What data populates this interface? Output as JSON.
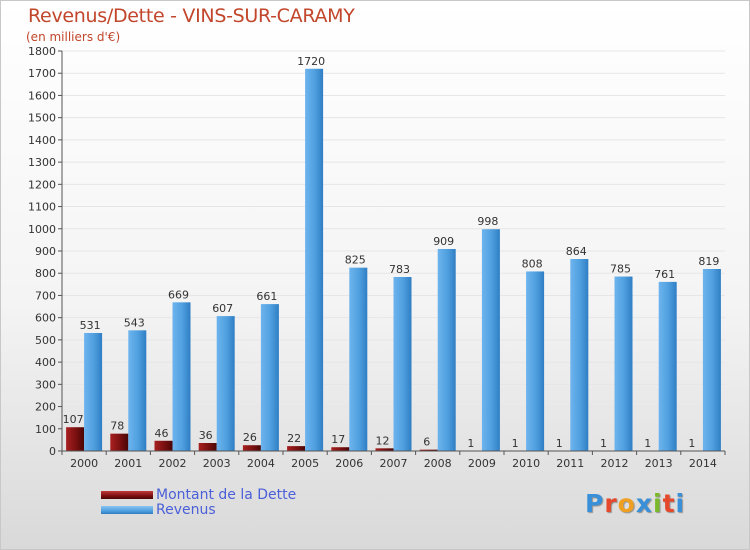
{
  "title": "Revenus/Dette - VINS-SUR-CARAMY",
  "subtitle": "(en milliers d'€)",
  "logo_text": "Proxiti",
  "logo_colors": [
    "#3a8fd9",
    "#e5482b",
    "#f0a020",
    "#3a8fd9",
    "#7ab929",
    "#e5482b",
    "#3a8fd9"
  ],
  "colors": {
    "dette": "#7a1010",
    "revenus": "#4f9fdf",
    "axis": "#555555",
    "grid": "#e6e6e6",
    "title": "#c2462b",
    "legend_text": "#4a5fd8"
  },
  "legend": [
    {
      "label": "Montant de la Dette",
      "color": "#7a1010"
    },
    {
      "label": "Revenus",
      "color": "#4f9fdf"
    }
  ],
  "chart_data": {
    "type": "bar",
    "title": "Revenus/Dette - VINS-SUR-CARAMY",
    "ylabel": "(en milliers d'€)",
    "xlabel": "",
    "ylim": [
      0,
      1800
    ],
    "yticks": [
      0,
      100,
      200,
      300,
      400,
      500,
      600,
      700,
      800,
      900,
      1000,
      1100,
      1200,
      1300,
      1400,
      1500,
      1600,
      1700,
      1800
    ],
    "categories": [
      "2000",
      "2001",
      "2002",
      "2003",
      "2004",
      "2005",
      "2006",
      "2007",
      "2008",
      "2009",
      "2010",
      "2011",
      "2012",
      "2013",
      "2014"
    ],
    "series": [
      {
        "name": "Montant de la Dette",
        "values": [
          107,
          78,
          46,
          36,
          26,
          22,
          17,
          12,
          6,
          1,
          1,
          1,
          1,
          1,
          1
        ]
      },
      {
        "name": "Revenus",
        "values": [
          531,
          543,
          669,
          607,
          661,
          1720,
          825,
          783,
          909,
          998,
          808,
          864,
          785,
          761,
          819
        ]
      }
    ],
    "legend_position": "bottom-left",
    "grid": true
  }
}
